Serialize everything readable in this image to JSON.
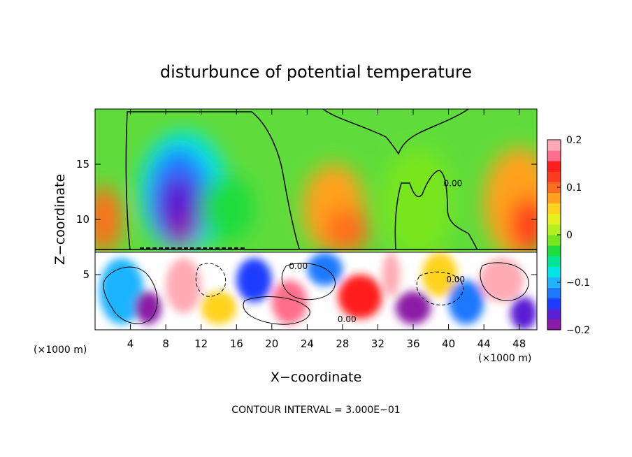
{
  "chart_data": {
    "type": "heatmap",
    "title": "disturbunce of potential temperature",
    "xlabel": "X−coordinate",
    "ylabel": "Z−coordinate",
    "x_unit_left": "(×1000 m)",
    "x_unit_right": "(×1000 m)",
    "xlim": [
      0,
      50
    ],
    "ylim": [
      0,
      20
    ],
    "x_ticks": [
      4,
      8,
      12,
      16,
      20,
      24,
      28,
      32,
      36,
      40,
      44,
      48
    ],
    "y_ticks": [
      5,
      10,
      15
    ],
    "contour_interval_label": "CONTOUR INTERVAL = 3.000E−01",
    "contour_labels": [
      {
        "x": 40.5,
        "y": 13.0,
        "text": "0.00"
      },
      {
        "x": 23.0,
        "y": 5.5,
        "text": "0.00"
      },
      {
        "x": 28.5,
        "y": 0.7,
        "text": "0.00"
      },
      {
        "x": 40.8,
        "y": 4.3,
        "text": "0.00"
      }
    ],
    "colorbar": {
      "min": -0.2,
      "max": 0.2,
      "ticks": [
        0.2,
        0.1,
        0,
        -0.1,
        -0.2
      ],
      "tick_labels": [
        "0.2",
        "0.1",
        "0",
        "−0.1",
        "−0.2"
      ],
      "colors": [
        "#8c1aa6",
        "#5a1ed4",
        "#1e3cff",
        "#1e78ff",
        "#1eb4ff",
        "#00e6e6",
        "#00e696",
        "#1edc3c",
        "#78e61e",
        "#b4f01e",
        "#e6f01e",
        "#ffd21e",
        "#ffa01e",
        "#ff6e1e",
        "#ff3c1e",
        "#ff1e1e",
        "#ff6e8c",
        "#ffaab4"
      ]
    },
    "field_blobs": [
      {
        "x": 10.0,
        "y": 12.5,
        "rx": 5.0,
        "ry": 5.5,
        "value": -0.07
      },
      {
        "x": 9.5,
        "y": 12.0,
        "rx": 3.5,
        "ry": 4.5,
        "value": -0.12
      },
      {
        "x": 9.5,
        "y": 11.0,
        "rx": 2.5,
        "ry": 3.0,
        "value": -0.16
      },
      {
        "x": 9.8,
        "y": 9.0,
        "rx": 1.5,
        "ry": 1.6,
        "value": -0.19
      },
      {
        "x": 15.0,
        "y": 11.0,
        "rx": 3.0,
        "ry": 3.0,
        "value": -0.04
      },
      {
        "x": 1.0,
        "y": 10.0,
        "rx": 2.0,
        "ry": 3.0,
        "value": 0.09
      },
      {
        "x": 27.0,
        "y": 11.0,
        "rx": 3.5,
        "ry": 4.0,
        "value": 0.07
      },
      {
        "x": 28.5,
        "y": 9.0,
        "rx": 2.5,
        "ry": 2.0,
        "value": 0.1
      },
      {
        "x": 48.0,
        "y": 11.5,
        "rx": 4.0,
        "ry": 5.0,
        "value": 0.08
      },
      {
        "x": 49.0,
        "y": 9.5,
        "rx": 2.0,
        "ry": 2.5,
        "value": 0.12
      },
      {
        "x": 36.5,
        "y": 11.5,
        "rx": 4.0,
        "ry": 5.0,
        "value": -0.02
      },
      {
        "x": 3.0,
        "y": 3.5,
        "rx": 2.5,
        "ry": 3.0,
        "value": -0.1
      },
      {
        "x": 6.0,
        "y": 2.0,
        "rx": 1.5,
        "ry": 1.5,
        "value": -0.2
      },
      {
        "x": 10.0,
        "y": 4.0,
        "rx": 2.0,
        "ry": 2.5,
        "value": 0.2
      },
      {
        "x": 14.0,
        "y": 2.0,
        "rx": 2.0,
        "ry": 1.5,
        "value": 0.05
      },
      {
        "x": 18.0,
        "y": 4.5,
        "rx": 2.0,
        "ry": 2.0,
        "value": -0.15
      },
      {
        "x": 22.0,
        "y": 2.5,
        "rx": 2.0,
        "ry": 2.0,
        "value": 0.17
      },
      {
        "x": 26.0,
        "y": 5.5,
        "rx": 2.0,
        "ry": 1.5,
        "value": -0.12
      },
      {
        "x": 30.0,
        "y": 3.0,
        "rx": 2.5,
        "ry": 2.0,
        "value": 0.14
      },
      {
        "x": 33.5,
        "y": 5.0,
        "rx": 1.0,
        "ry": 2.0,
        "value": 0.2
      },
      {
        "x": 36.0,
        "y": 2.0,
        "rx": 2.0,
        "ry": 1.5,
        "value": -0.18
      },
      {
        "x": 39.0,
        "y": 5.0,
        "rx": 2.0,
        "ry": 2.0,
        "value": 0.06
      },
      {
        "x": 42.0,
        "y": 2.5,
        "rx": 2.0,
        "ry": 2.0,
        "value": -0.13
      },
      {
        "x": 46.0,
        "y": 4.5,
        "rx": 2.5,
        "ry": 2.0,
        "value": 0.18
      },
      {
        "x": 48.5,
        "y": 1.5,
        "rx": 1.5,
        "ry": 1.5,
        "value": -0.16
      }
    ]
  }
}
